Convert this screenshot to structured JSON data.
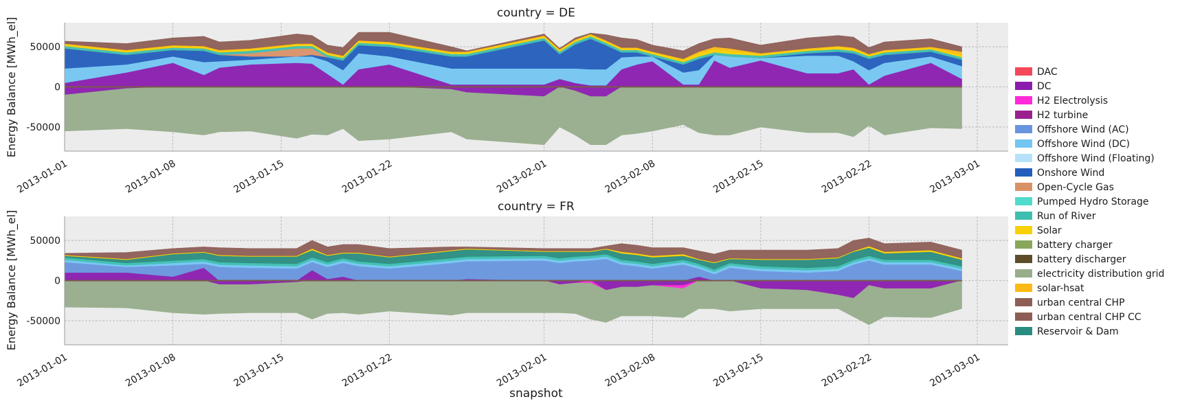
{
  "chart_data": {
    "type": "area",
    "xlabel": "snapshot",
    "x_range": [
      "2013-01-01",
      "2013-03-03"
    ],
    "x_ticks": [
      "2013-01-01",
      "2013-01-08",
      "2013-01-15",
      "2013-01-22",
      "2013-02-01",
      "2013-02-08",
      "2013-02-15",
      "2013-02-22",
      "2013-03-01"
    ],
    "y_ticks": [
      -50000,
      0,
      50000
    ],
    "grid": true,
    "legend_position": "right",
    "legend": [
      {
        "name": "DAC",
        "color": "#f5475a"
      },
      {
        "name": "DC",
        "color": "#8a1caf"
      },
      {
        "name": "H2 Electrolysis",
        "color": "#ff29d9"
      },
      {
        "name": "H2 turbine",
        "color": "#9b1f8f"
      },
      {
        "name": "Offshore Wind (AC)",
        "color": "#6895dd"
      },
      {
        "name": "Offshore Wind (DC)",
        "color": "#74c6f2"
      },
      {
        "name": "Offshore Wind (Floating)",
        "color": "#b5e2fa"
      },
      {
        "name": "Onshore Wind",
        "color": "#235ebc"
      },
      {
        "name": "Open-Cycle Gas",
        "color": "#d99268"
      },
      {
        "name": "Pumped Hydro Storage",
        "color": "#51dbcc"
      },
      {
        "name": "Run of River",
        "color": "#3dbfb0"
      },
      {
        "name": "Solar",
        "color": "#f9d002"
      },
      {
        "name": "battery charger",
        "color": "#88a75b"
      },
      {
        "name": "battery discharger",
        "color": "#5d4e29"
      },
      {
        "name": "electricity distribution grid",
        "color": "#97ad8c"
      },
      {
        "name": "solar-hsat",
        "color": "#fdb915"
      },
      {
        "name": "urban central CHP",
        "color": "#8d5e56"
      },
      {
        "name": "urban central CHP CC",
        "color": "#8d5e56"
      },
      {
        "name": "Reservoir & Dam",
        "color": "#298c81"
      }
    ],
    "panels": [
      {
        "title": "country = DE",
        "ylabel": "Energy Balance [MWh_el]",
        "ylim": [
          -80000,
          80000
        ],
        "x": [
          "2013-01-01",
          "2013-01-05",
          "2013-01-08",
          "2013-01-10",
          "2013-01-11",
          "2013-01-13",
          "2013-01-16",
          "2013-01-17",
          "2013-01-18",
          "2013-01-19",
          "2013-01-20",
          "2013-01-22",
          "2013-01-26",
          "2013-01-27",
          "2013-02-01",
          "2013-02-02",
          "2013-02-03",
          "2013-02-04",
          "2013-02-05",
          "2013-02-06",
          "2013-02-07",
          "2013-02-08",
          "2013-02-10",
          "2013-02-11",
          "2013-02-12",
          "2013-02-13",
          "2013-02-15",
          "2013-02-18",
          "2013-02-20",
          "2013-02-21",
          "2013-02-22",
          "2013-02-23",
          "2013-02-26",
          "2013-02-28"
        ],
        "series": [
          {
            "name": "DC",
            "values": [
              5000,
              18000,
              30000,
              15000,
              24000,
              28000,
              30000,
              29000,
              16000,
              3000,
              22000,
              28000,
              3000,
              3000,
              3000,
              10000,
              5000,
              2000,
              2000,
              22000,
              28000,
              32000,
              3000,
              3000,
              33000,
              24000,
              33000,
              17000,
              17000,
              22000,
              3000,
              14000,
              30000,
              10000
            ]
          },
          {
            "name": "Offshore Wind (DC)",
            "values": [
              18000,
              10000,
              8000,
              16000,
              8000,
              6000,
              8000,
              9000,
              16000,
              18000,
              20000,
              10000,
              20000,
              20000,
              20000,
              13000,
              18000,
              20000,
              20000,
              15000,
              10000,
              6000,
              15000,
              18000,
              7000,
              14000,
              3000,
              22000,
              22000,
              10000,
              18000,
              16000,
              8000,
              16000
            ]
          },
          {
            "name": "Onshore Wind",
            "values": [
              25000,
              12000,
              8000,
              14000,
              8000,
              4000,
              0,
              2000,
              5000,
              12000,
              10000,
              12000,
              15000,
              15000,
              35000,
              18000,
              30000,
              38000,
              30000,
              6000,
              5000,
              0,
              10000,
              14000,
              0,
              0,
              0,
              3000,
              5000,
              10000,
              14000,
              10000,
              6000,
              8000
            ]
          },
          {
            "name": "Open-Cycle Gas",
            "values": [
              0,
              0,
              0,
              0,
              0,
              4000,
              10000,
              8000,
              0,
              0,
              0,
              0,
              0,
              0,
              0,
              0,
              0,
              0,
              0,
              0,
              0,
              0,
              0,
              0,
              0,
              0,
              0,
              0,
              0,
              0,
              0,
              0,
              0,
              0
            ]
          },
          {
            "name": "Run of River",
            "values": [
              3000,
              3000,
              3000,
              3000,
              3000,
              3000,
              3000,
              3000,
              3000,
              3000,
              3000,
              3000,
              3000,
              3000,
              3000,
              3000,
              3000,
              3000,
              3000,
              3000,
              3000,
              3000,
              3000,
              3000,
              3000,
              3000,
              3000,
              3000,
              3000,
              3000,
              3000,
              3000,
              3000,
              3000
            ]
          },
          {
            "name": "Solar",
            "values": [
              2000,
              2000,
              2000,
              2000,
              2000,
              2000,
              2000,
              2000,
              2000,
              2000,
              2000,
              2000,
              2000,
              2000,
              2000,
              2000,
              2000,
              2000,
              2000,
              2000,
              2000,
              2000,
              3000,
              4000,
              4000,
              4000,
              2000,
              2000,
              3000,
              3000,
              2000,
              2000,
              2000,
              3000
            ]
          },
          {
            "name": "solar-hsat",
            "values": [
              1000,
              1000,
              1000,
              1000,
              1000,
              1000,
              1000,
              1000,
              1000,
              1000,
              1000,
              1000,
              1000,
              1000,
              1000,
              1000,
              1000,
              1000,
              1000,
              1000,
              1000,
              1000,
              1000,
              2000,
              3000,
              3000,
              1000,
              1000,
              1000,
              1000,
              1000,
              1000,
              1000,
              4000
            ]
          },
          {
            "name": "urban central CHP",
            "values": [
              3000,
              8000,
              9000,
              12000,
              10000,
              10000,
              12000,
              10000,
              9000,
              10000,
              10000,
              12000,
              6000,
              1000,
              2000,
              1000,
              2000,
              1000,
              7000,
              12000,
              10000,
              8000,
              10000,
              10000,
              10000,
              13000,
              10000,
              13000,
              13000,
              13000,
              8000,
              10000,
              10000,
              6000
            ]
          },
          {
            "name": "DC",
            "values": [
              -10000,
              -2000,
              0,
              0,
              0,
              0,
              0,
              0,
              0,
              0,
              0,
              0,
              -3000,
              -7000,
              -12000,
              0,
              -5000,
              -12000,
              -12000,
              0,
              0,
              0,
              0,
              0,
              0,
              0,
              0,
              0,
              0,
              0,
              0,
              0,
              0,
              0
            ]
          },
          {
            "name": "electricity distribution grid",
            "values": [
              -45000,
              -50000,
              -56000,
              -60000,
              -56000,
              -55000,
              -64000,
              -59000,
              -60000,
              -52000,
              -67000,
              -65000,
              -53000,
              -58000,
              -60000,
              -50000,
              -55000,
              -60000,
              -60000,
              -60000,
              -58000,
              -55000,
              -47000,
              -57000,
              -60000,
              -60000,
              -50000,
              -57000,
              -57000,
              -62000,
              -48000,
              -60000,
              -51000,
              -52000
            ]
          }
        ]
      },
      {
        "title": "country = FR",
        "ylabel": "Energy Balance [MWh_el]",
        "ylim": [
          -80000,
          80000
        ],
        "x": [
          "2013-01-01",
          "2013-01-05",
          "2013-01-08",
          "2013-01-10",
          "2013-01-11",
          "2013-01-13",
          "2013-01-16",
          "2013-01-17",
          "2013-01-18",
          "2013-01-19",
          "2013-01-20",
          "2013-01-22",
          "2013-01-26",
          "2013-01-27",
          "2013-02-01",
          "2013-02-02",
          "2013-02-03",
          "2013-02-04",
          "2013-02-05",
          "2013-02-06",
          "2013-02-07",
          "2013-02-08",
          "2013-02-10",
          "2013-02-11",
          "2013-02-12",
          "2013-02-13",
          "2013-02-15",
          "2013-02-18",
          "2013-02-20",
          "2013-02-21",
          "2013-02-22",
          "2013-02-23",
          "2013-02-26",
          "2013-02-28"
        ],
        "series": [
          {
            "name": "DC",
            "values": [
              10000,
              10000,
              5000,
              16000,
              0,
              0,
              0,
              13000,
              2000,
              5000,
              0,
              0,
              0,
              2000,
              0,
              0,
              0,
              0,
              0,
              0,
              0,
              0,
              0,
              5000,
              0,
              0,
              0,
              0,
              0,
              0,
              0,
              0,
              0,
              0
            ]
          },
          {
            "name": "Offshore Wind (AC)",
            "values": [
              13000,
              7000,
              14000,
              5000,
              17000,
              16000,
              15000,
              10000,
              15000,
              17000,
              18000,
              15000,
              22000,
              22000,
              25000,
              22000,
              24000,
              25000,
              27000,
              20000,
              18000,
              15000,
              20000,
              10000,
              8000,
              16000,
              12000,
              10000,
              12000,
              20000,
              25000,
              20000,
              20000,
              12000
            ]
          },
          {
            "name": "Offshore Wind (DC)",
            "values": [
              3000,
              2000,
              3000,
              3000,
              3000,
              3000,
              3000,
              3000,
              3000,
              3000,
              3000,
              3000,
              3000,
              3000,
              3000,
              3000,
              3000,
              3000,
              3000,
              3000,
              3000,
              3000,
              3000,
              3000,
              3000,
              3000,
              3000,
              3000,
              3000,
              3000,
              3000,
              3000,
              3000,
              3000
            ]
          },
          {
            "name": "Run of River",
            "values": [
              3000,
              3000,
              3000,
              3000,
              3000,
              3000,
              3000,
              3000,
              3000,
              3000,
              3000,
              3000,
              3000,
              3000,
              3000,
              3000,
              3000,
              3000,
              3000,
              3000,
              3000,
              3000,
              3000,
              3000,
              3000,
              3000,
              3000,
              3000,
              3000,
              3000,
              3000,
              3000,
              3000,
              3000
            ]
          },
          {
            "name": "Reservoir & Dam",
            "values": [
              2000,
              4000,
              8000,
              8000,
              8000,
              8000,
              9000,
              9000,
              8000,
              6000,
              10000,
              8000,
              9000,
              9000,
              5000,
              8000,
              6000,
              5000,
              6000,
              8000,
              8000,
              8000,
              5000,
              5000,
              8000,
              5000,
              8000,
              10000,
              10000,
              10000,
              10000,
              8000,
              10000,
              8000
            ]
          },
          {
            "name": "Solar",
            "values": [
              1000,
              1000,
              1000,
              1000,
              1000,
              1000,
              1000,
              2000,
              1000,
              1000,
              1000,
              1000,
              1000,
              1000,
              1000,
              1000,
              1000,
              1000,
              1000,
              2000,
              2000,
              2000,
              2000,
              1000,
              1000,
              1000,
              1000,
              1000,
              1000,
              1000,
              2000,
              2000,
              2000,
              2000
            ]
          },
          {
            "name": "urban central CHP",
            "values": [
              2000,
              8000,
              6000,
              6000,
              9000,
              9000,
              9000,
              10000,
              10000,
              10000,
              10000,
              10000,
              4000,
              2000,
              3000,
              3000,
              3000,
              3000,
              3000,
              10000,
              10000,
              10000,
              8000,
              10000,
              10000,
              10000,
              11000,
              11000,
              11000,
              13000,
              10000,
              10000,
              10000,
              10000
            ]
          },
          {
            "name": "DC",
            "values": [
              0,
              0,
              0,
              0,
              -5000,
              -5000,
              -2000,
              0,
              0,
              0,
              0,
              0,
              0,
              0,
              0,
              -5000,
              -3000,
              0,
              -12000,
              -8000,
              -8000,
              -6000,
              -6000,
              0,
              0,
              0,
              -10000,
              -12000,
              -18000,
              -22000,
              -6000,
              -10000,
              -10000,
              0
            ]
          },
          {
            "name": "H2 Electrolysis",
            "values": [
              0,
              0,
              0,
              0,
              0,
              0,
              0,
              0,
              0,
              0,
              0,
              0,
              0,
              0,
              0,
              0,
              0,
              -3000,
              0,
              0,
              0,
              0,
              -4000,
              0,
              0,
              0,
              0,
              0,
              0,
              0,
              0,
              0,
              0,
              0
            ]
          },
          {
            "name": "electricity distribution grid",
            "values": [
              -33000,
              -34000,
              -40000,
              -42000,
              -36000,
              -35000,
              -38000,
              -48000,
              -41000,
              -40000,
              -42000,
              -38000,
              -43000,
              -40000,
              -40000,
              -35000,
              -38000,
              -45000,
              -40000,
              -36000,
              -36000,
              -38000,
              -36000,
              -35000,
              -35000,
              -38000,
              -25000,
              -23000,
              -17000,
              -23000,
              -49000,
              -35000,
              -36000,
              -35000
            ]
          }
        ]
      }
    ]
  }
}
